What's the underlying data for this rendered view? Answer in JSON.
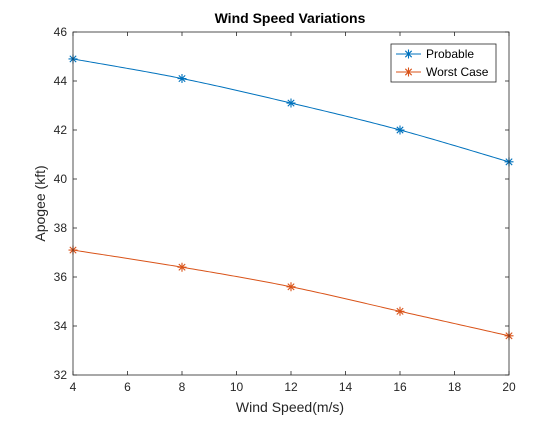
{
  "chart_data": {
    "type": "line",
    "title": "Wind Speed Variations",
    "xlabel": "Wind Speed(m/s)",
    "ylabel": "Apogee (kft)",
    "x": [
      4,
      8,
      12,
      16,
      20
    ],
    "xlim": [
      4,
      20
    ],
    "ylim": [
      32,
      46
    ],
    "xticks": [
      4,
      6,
      8,
      10,
      12,
      14,
      16,
      18,
      20
    ],
    "yticks": [
      32,
      34,
      36,
      38,
      40,
      42,
      44,
      46
    ],
    "grid": false,
    "legend_position": "top-right",
    "marker": "asterisk",
    "series": [
      {
        "name": "Probable",
        "color": "#0072BD",
        "values": [
          44.9,
          44.1,
          43.1,
          42.0,
          40.7
        ]
      },
      {
        "name": "Worst Case",
        "color": "#D95319",
        "values": [
          37.1,
          36.4,
          35.6,
          34.6,
          33.6
        ]
      }
    ]
  }
}
